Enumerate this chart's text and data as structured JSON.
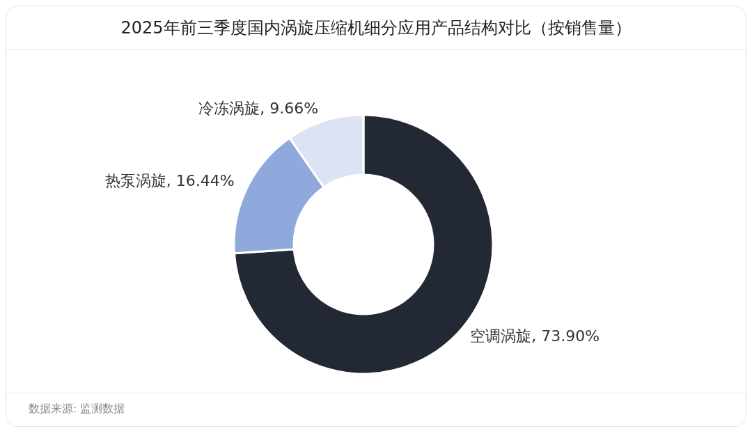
{
  "chart_data": {
    "type": "donut",
    "title": "2025年前三季度国内涡旋压缩机细分应用产品结构对比（按销售量）",
    "categories": [
      "空调涡旋",
      "热泵涡旋",
      "冷冻涡旋"
    ],
    "values": [
      73.9,
      16.44,
      9.66
    ],
    "value_labels": [
      "73.90%",
      "16.44%",
      "9.66%"
    ],
    "colors": [
      "#222834",
      "#8fa9dc",
      "#dce3f3"
    ],
    "annotations": [
      "数据来源: 监测数据"
    ]
  }
}
